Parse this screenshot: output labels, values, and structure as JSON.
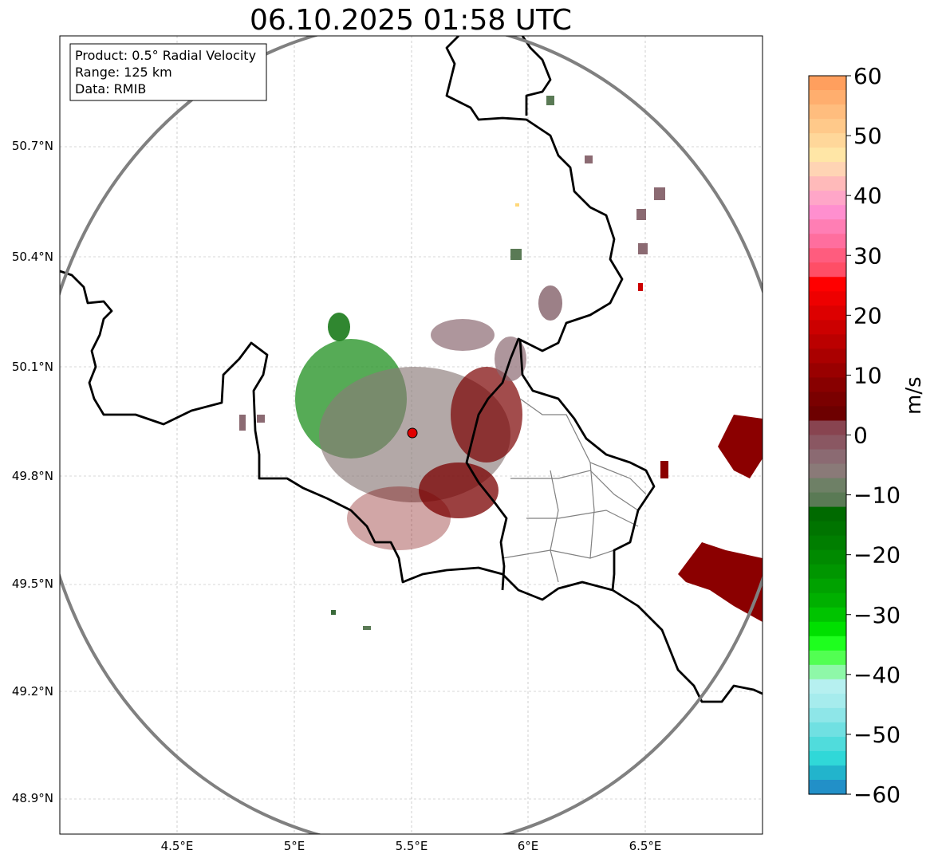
{
  "title": "06.10.2025 01:58 UTC",
  "info_box": {
    "product": "Product: 0.5° Radial Velocity",
    "range": "Range: 125 km",
    "data": "Data: RMIB"
  },
  "axes": {
    "lat_ticks": [
      "50.7°N",
      "50.4°N",
      "50.1°N",
      "49.8°N",
      "49.5°N",
      "49.2°N",
      "48.9°N"
    ],
    "lon_ticks": [
      "4.5°E",
      "5°E",
      "5.5°E",
      "6°E",
      "6.5°E"
    ]
  },
  "colorbar": {
    "unit": "m/s",
    "ticks": [
      "60",
      "50",
      "40",
      "30",
      "20",
      "10",
      "0",
      "−10",
      "−20",
      "−30",
      "−40",
      "−50",
      "−60"
    ],
    "range": [
      -60,
      60
    ],
    "colors_top_to_bottom": [
      "#ff9f5e",
      "#ffae6e",
      "#ffbd7e",
      "#ffc98a",
      "#ffd79a",
      "#ffe6a6",
      "#ffd4b4",
      "#ffbaba",
      "#ffa6c8",
      "#ff8fcf",
      "#ff7eb4",
      "#ff6e9e",
      "#ff5c7e",
      "#ff4e66",
      "#ff0000",
      "#ee0000",
      "#dd0000",
      "#cc0000",
      "#bb0000",
      "#aa0000",
      "#990000",
      "#880000",
      "#7a0000",
      "#6d0000",
      "#884450",
      "#8a5762",
      "#8b6a72",
      "#8a7a78",
      "#6e8066",
      "#5a7a55",
      "#006a00",
      "#007400",
      "#007e00",
      "#008a00",
      "#009600",
      "#00a200",
      "#00b000",
      "#00c400",
      "#00e000",
      "#1eff1e",
      "#52ff52",
      "#8ef8a8",
      "#b6f0f0",
      "#a6eced",
      "#8ee6e8",
      "#70e0e2",
      "#50dcdc",
      "#30d8d8",
      "#22b4cc",
      "#2290c8"
    ]
  },
  "radar_site": "red-dot",
  "range_ring": true
}
